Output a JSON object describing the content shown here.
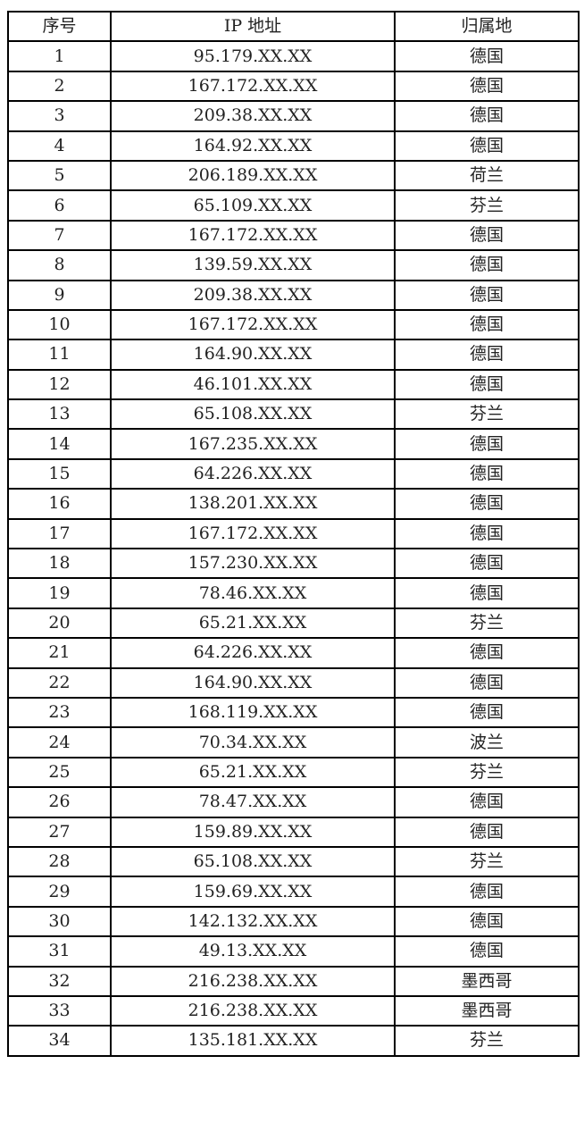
{
  "table": {
    "headers": [
      "序号",
      "IP 地址",
      "归属地"
    ],
    "rows": [
      [
        "1",
        "95.179.XX.XX",
        "德国"
      ],
      [
        "2",
        "167.172.XX.XX",
        "德国"
      ],
      [
        "3",
        "209.38.XX.XX",
        "德国"
      ],
      [
        "4",
        "164.92.XX.XX",
        "德国"
      ],
      [
        "5",
        "206.189.XX.XX",
        "荷兰"
      ],
      [
        "6",
        "65.109.XX.XX",
        "芬兰"
      ],
      [
        "7",
        "167.172.XX.XX",
        "德国"
      ],
      [
        "8",
        "139.59.XX.XX",
        "德国"
      ],
      [
        "9",
        "209.38.XX.XX",
        "德国"
      ],
      [
        "10",
        "167.172.XX.XX",
        "德国"
      ],
      [
        "11",
        "164.90.XX.XX",
        "德国"
      ],
      [
        "12",
        "46.101.XX.XX",
        "德国"
      ],
      [
        "13",
        "65.108.XX.XX",
        "芬兰"
      ],
      [
        "14",
        "167.235.XX.XX",
        "德国"
      ],
      [
        "15",
        "64.226.XX.XX",
        "德国"
      ],
      [
        "16",
        "138.201.XX.XX",
        "德国"
      ],
      [
        "17",
        "167.172.XX.XX",
        "德国"
      ],
      [
        "18",
        "157.230.XX.XX",
        "德国"
      ],
      [
        "19",
        "78.46.XX.XX",
        "德国"
      ],
      [
        "20",
        "65.21.XX.XX",
        "芬兰"
      ],
      [
        "21",
        "64.226.XX.XX",
        "德国"
      ],
      [
        "22",
        "164.90.XX.XX",
        "德国"
      ],
      [
        "23",
        "168.119.XX.XX",
        "德国"
      ],
      [
        "24",
        "70.34.XX.XX",
        "波兰"
      ],
      [
        "25",
        "65.21.XX.XX",
        "芬兰"
      ],
      [
        "26",
        "78.47.XX.XX",
        "德国"
      ],
      [
        "27",
        "159.89.XX.XX",
        "德国"
      ],
      [
        "28",
        "65.108.XX.XX",
        "芬兰"
      ],
      [
        "29",
        "159.69.XX.XX",
        "德国"
      ],
      [
        "30",
        "142.132.XX.XX",
        "德国"
      ],
      [
        "31",
        "49.13.XX.XX",
        "德国"
      ],
      [
        "32",
        "216.238.XX.XX",
        "墨西哥"
      ],
      [
        "33",
        "216.238.XX.XX",
        "墨西哥"
      ],
      [
        "34",
        "135.181.XX.XX",
        "芬兰"
      ]
    ]
  }
}
